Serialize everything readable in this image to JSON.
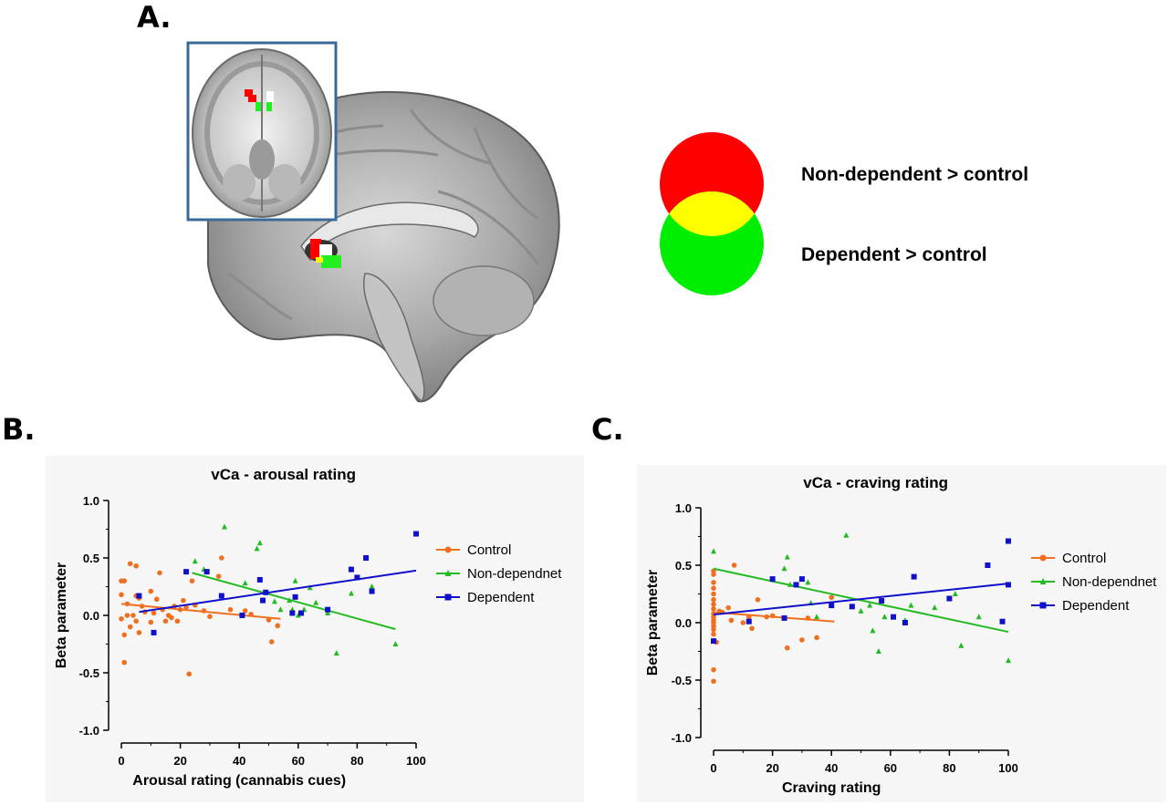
{
  "panels": {
    "a": "A.",
    "b": "B.",
    "c": "C."
  },
  "overlap_legend": {
    "top": "Non-dependent > control",
    "bottom": "Dependent > control",
    "colors": {
      "top": "#ff0000",
      "bottom": "#00ee00",
      "overlap": "#ffff00"
    }
  },
  "chart_data": [
    {
      "type": "scatter",
      "title": "vCa - arousal rating",
      "xlabel": "Arousal rating (cannabis cues)",
      "ylabel": "Beta parameter",
      "xlim": [
        0,
        100
      ],
      "ylim": [
        -1.0,
        1.0
      ],
      "xticks": [
        "0",
        "20",
        "40",
        "60",
        "80",
        "100"
      ],
      "yticks": [
        "1.0",
        "0.5",
        "0.0",
        "-0.5",
        "-1.0"
      ],
      "grid": false,
      "legend_position": "right",
      "series": [
        {
          "name": "Control",
          "color": "#f07020",
          "marker": "circle",
          "points": [
            [
              0,
              -0.03
            ],
            [
              0,
              0.3
            ],
            [
              0,
              0.18
            ],
            [
              1,
              -0.41
            ],
            [
              1,
              0.3
            ],
            [
              1,
              -0.17
            ],
            [
              2,
              0.1
            ],
            [
              2,
              0.0
            ],
            [
              3,
              0.45
            ],
            [
              3,
              -0.1
            ],
            [
              4,
              0.0
            ],
            [
              5,
              0.17
            ],
            [
              5,
              0.43
            ],
            [
              5,
              -0.05
            ],
            [
              6,
              0.15
            ],
            [
              6,
              -0.15
            ],
            [
              7,
              0.08
            ],
            [
              8,
              0.03
            ],
            [
              10,
              -0.06
            ],
            [
              10,
              0.21
            ],
            [
              11,
              0.02
            ],
            [
              12,
              0.14
            ],
            [
              13,
              0.37
            ],
            [
              14,
              0.05
            ],
            [
              15,
              -0.05
            ],
            [
              16,
              0.0
            ],
            [
              17,
              -0.02
            ],
            [
              18,
              0.08
            ],
            [
              19,
              -0.05
            ],
            [
              20,
              0.05
            ],
            [
              21,
              0.13
            ],
            [
              22,
              0.07
            ],
            [
              23,
              -0.51
            ],
            [
              24,
              0.3
            ],
            [
              25,
              0.09
            ],
            [
              28,
              0.04
            ],
            [
              30,
              -0.01
            ],
            [
              33,
              0.34
            ],
            [
              34,
              0.5
            ],
            [
              37,
              0.05
            ],
            [
              42,
              0.04
            ],
            [
              44,
              0.01
            ],
            [
              50,
              -0.04
            ],
            [
              51,
              -0.23
            ],
            [
              53,
              -0.09
            ]
          ],
          "fit": [
            [
              0,
              0.1
            ],
            [
              54,
              -0.03
            ]
          ]
        },
        {
          "name": "Non-dependnet",
          "color": "#22bb22",
          "marker": "triangle",
          "points": [
            [
              25,
              0.47
            ],
            [
              28,
              0.4
            ],
            [
              35,
              0.77
            ],
            [
              42,
              0.28
            ],
            [
              46,
              0.58
            ],
            [
              47,
              0.63
            ],
            [
              52,
              0.12
            ],
            [
              54,
              0.05
            ],
            [
              57,
              0.13
            ],
            [
              58,
              0.05
            ],
            [
              59,
              0.3
            ],
            [
              60,
              0.0
            ],
            [
              62,
              0.05
            ],
            [
              64,
              0.24
            ],
            [
              66,
              0.11
            ],
            [
              70,
              0.02
            ],
            [
              73,
              -0.33
            ],
            [
              78,
              0.19
            ],
            [
              85,
              0.25
            ],
            [
              93,
              -0.25
            ]
          ],
          "fit": [
            [
              24,
              0.37
            ],
            [
              93,
              -0.12
            ]
          ]
        },
        {
          "name": "Dependent",
          "color": "#1010cc",
          "marker": "square",
          "points": [
            [
              6,
              0.17
            ],
            [
              11,
              -0.15
            ],
            [
              22,
              0.38
            ],
            [
              29,
              0.38
            ],
            [
              34,
              0.17
            ],
            [
              41,
              0.0
            ],
            [
              47,
              0.31
            ],
            [
              48,
              0.13
            ],
            [
              49,
              0.2
            ],
            [
              58,
              0.02
            ],
            [
              59,
              0.16
            ],
            [
              61,
              0.02
            ],
            [
              70,
              0.05
            ],
            [
              78,
              0.4
            ],
            [
              80,
              0.33
            ],
            [
              83,
              0.5
            ],
            [
              85,
              0.21
            ],
            [
              100,
              0.71
            ]
          ],
          "fit": [
            [
              6,
              0.03
            ],
            [
              100,
              0.39
            ]
          ]
        }
      ]
    },
    {
      "type": "scatter",
      "title": "vCa - craving rating",
      "xlabel": "Craving rating",
      "ylabel": "Beta parameter",
      "xlim": [
        0,
        100
      ],
      "ylim": [
        -1.0,
        1.0
      ],
      "xticks": [
        "0",
        "20",
        "40",
        "60",
        "80",
        "100"
      ],
      "yticks": [
        "1.0",
        "0.5",
        "0.0",
        "-0.5",
        "-1.0"
      ],
      "grid": false,
      "legend_position": "right",
      "series": [
        {
          "name": "Control",
          "color": "#f07020",
          "marker": "circle",
          "points": [
            [
              0,
              0.45
            ],
            [
              0,
              0.42
            ],
            [
              0,
              0.35
            ],
            [
              0,
              0.3
            ],
            [
              0,
              0.25
            ],
            [
              0,
              0.2
            ],
            [
              0,
              0.16
            ],
            [
              0,
              0.12
            ],
            [
              0,
              0.08
            ],
            [
              0,
              0.05
            ],
            [
              0,
              0.02
            ],
            [
              0,
              0.0
            ],
            [
              0,
              -0.03
            ],
            [
              0,
              -0.06
            ],
            [
              0,
              -0.1
            ],
            [
              0,
              -0.16
            ],
            [
              0,
              -0.41
            ],
            [
              0,
              -0.51
            ],
            [
              1,
              -0.17
            ],
            [
              2,
              0.1
            ],
            [
              3,
              0.09
            ],
            [
              5,
              0.13
            ],
            [
              6,
              0.02
            ],
            [
              7,
              0.5
            ],
            [
              10,
              0.0
            ],
            [
              12,
              0.05
            ],
            [
              13,
              -0.05
            ],
            [
              15,
              0.2
            ],
            [
              18,
              0.05
            ],
            [
              20,
              0.06
            ],
            [
              25,
              -0.22
            ],
            [
              30,
              -0.15
            ],
            [
              32,
              0.04
            ],
            [
              35,
              -0.13
            ],
            [
              40,
              0.22
            ]
          ],
          "fit": [
            [
              0,
              0.09
            ],
            [
              41,
              0.01
            ]
          ]
        },
        {
          "name": "Non-dependnet",
          "color": "#22bb22",
          "marker": "triangle",
          "points": [
            [
              0,
              0.62
            ],
            [
              24,
              0.47
            ],
            [
              25,
              0.57
            ],
            [
              26,
              0.33
            ],
            [
              32,
              0.35
            ],
            [
              33,
              0.17
            ],
            [
              35,
              0.05
            ],
            [
              45,
              0.76
            ],
            [
              50,
              0.1
            ],
            [
              53,
              0.15
            ],
            [
              54,
              -0.07
            ],
            [
              56,
              -0.25
            ],
            [
              58,
              0.05
            ],
            [
              65,
              0.02
            ],
            [
              67,
              0.15
            ],
            [
              75,
              0.13
            ],
            [
              82,
              0.25
            ],
            [
              84,
              -0.2
            ],
            [
              90,
              0.05
            ],
            [
              100,
              -0.33
            ]
          ],
          "fit": [
            [
              0,
              0.47
            ],
            [
              100,
              -0.08
            ]
          ]
        },
        {
          "name": "Dependent",
          "color": "#1010cc",
          "marker": "square",
          "points": [
            [
              0,
              -0.16
            ],
            [
              12,
              0.01
            ],
            [
              20,
              0.38
            ],
            [
              24,
              0.04
            ],
            [
              28,
              0.33
            ],
            [
              30,
              0.38
            ],
            [
              40,
              0.15
            ],
            [
              47,
              0.14
            ],
            [
              57,
              0.19
            ],
            [
              61,
              0.05
            ],
            [
              65,
              0.0
            ],
            [
              68,
              0.4
            ],
            [
              80,
              0.21
            ],
            [
              93,
              0.5
            ],
            [
              98,
              0.01
            ],
            [
              100,
              0.33
            ],
            [
              100,
              0.71
            ]
          ],
          "fit": [
            [
              0,
              0.07
            ],
            [
              100,
              0.34
            ]
          ]
        }
      ]
    }
  ]
}
